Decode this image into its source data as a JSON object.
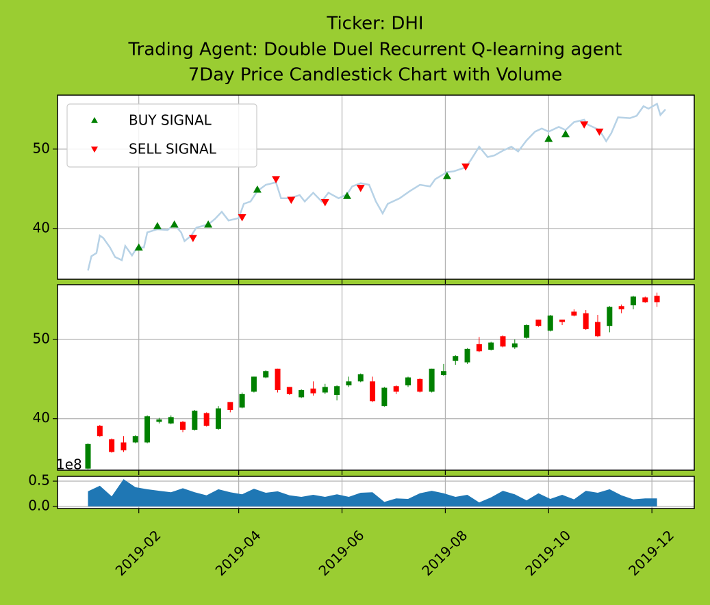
{
  "title": [
    "Ticker: DHI",
    "Trading Agent: Double Duel Recurrent Q-learning agent",
    "7Day Price Candlestick Chart with Volume"
  ],
  "chart_data": [
    {
      "type": "line",
      "x": [
        "2019-01-02",
        "2019-01-04",
        "2019-01-07",
        "2019-01-09",
        "2019-01-11",
        "2019-01-15",
        "2019-01-18",
        "2019-01-22",
        "2019-01-24",
        "2019-01-28",
        "2019-01-31",
        "2019-02-04",
        "2019-02-06",
        "2019-02-12",
        "2019-02-18",
        "2019-02-22",
        "2019-02-26",
        "2019-02-28",
        "2019-03-04",
        "2019-03-07",
        "2019-03-14",
        "2019-03-18",
        "2019-03-22",
        "2019-03-26",
        "2019-04-01",
        "2019-04-04",
        "2019-04-08",
        "2019-04-12",
        "2019-04-17",
        "2019-04-23",
        "2019-04-26",
        "2019-05-01",
        "2019-05-07",
        "2019-05-10",
        "2019-05-15",
        "2019-05-20",
        "2019-05-24",
        "2019-05-30",
        "2019-06-04",
        "2019-06-07",
        "2019-06-12",
        "2019-06-17",
        "2019-06-21",
        "2019-06-25",
        "2019-06-28",
        "2019-07-05",
        "2019-07-11",
        "2019-07-17",
        "2019-07-23",
        "2019-07-26",
        "2019-08-02",
        "2019-08-06",
        "2019-08-13",
        "2019-08-16",
        "2019-08-21",
        "2019-08-26",
        "2019-08-30",
        "2019-09-04",
        "2019-09-09",
        "2019-09-13",
        "2019-09-18",
        "2019-09-23",
        "2019-09-27",
        "2019-10-01",
        "2019-10-07",
        "2019-10-11",
        "2019-10-16",
        "2019-10-22",
        "2019-10-24",
        "2019-10-31",
        "2019-11-04",
        "2019-11-07",
        "2019-11-11",
        "2019-11-18",
        "2019-11-22",
        "2019-11-26",
        "2019-11-29",
        "2019-12-04",
        "2019-12-06",
        "2019-12-09"
      ],
      "values": [
        34.7,
        36.5,
        36.9,
        39.1,
        38.8,
        37.6,
        36.4,
        36.0,
        37.8,
        36.6,
        37.6,
        37.6,
        39.5,
        39.9,
        39.8,
        40.5,
        39.5,
        38.4,
        39.1,
        40.1,
        40.5,
        41.2,
        42.1,
        41.0,
        41.3,
        43.1,
        43.4,
        44.7,
        45.5,
        45.8,
        43.8,
        43.8,
        44.2,
        43.4,
        44.5,
        43.4,
        44.5,
        43.8,
        44.3,
        45.3,
        45.7,
        45.5,
        43.4,
        41.9,
        43.1,
        43.8,
        44.7,
        45.5,
        45.3,
        46.2,
        47.1,
        47.2,
        47.7,
        48.6,
        50.3,
        49.0,
        49.2,
        49.8,
        50.3,
        49.7,
        51.1,
        52.2,
        52.6,
        52.2,
        52.8,
        52.4,
        53.4,
        53.7,
        53.1,
        52.4,
        51.0,
        52.0,
        54.0,
        53.9,
        54.2,
        55.4,
        55.1,
        55.7,
        54.3,
        55.0
      ],
      "color": "#b7d2e6",
      "signals": [
        {
          "name": "BUY SIGNAL",
          "color": "#008000",
          "marker": "^",
          "x": [
            "2019-02-01",
            "2019-02-12",
            "2019-02-22",
            "2019-03-14",
            "2019-04-12",
            "2019-06-04",
            "2019-08-02",
            "2019-10-01",
            "2019-10-11"
          ],
          "values": [
            37.6,
            40.3,
            40.5,
            40.5,
            44.9,
            44.1,
            46.6,
            51.3,
            51.9
          ]
        },
        {
          "name": "SELL SIGNAL",
          "color": "#ff0000",
          "marker": "v",
          "x": [
            "2019-03-05",
            "2019-04-03",
            "2019-04-23",
            "2019-05-02",
            "2019-05-22",
            "2019-06-12",
            "2019-08-13",
            "2019-10-22",
            "2019-10-31"
          ],
          "values": [
            38.8,
            41.4,
            46.2,
            43.6,
            43.3,
            45.1,
            47.8,
            53.1,
            52.2
          ]
        }
      ],
      "xlim": [
        "2018-12-15",
        "2019-12-26"
      ],
      "xticks": [
        "2019-02",
        "2019-04",
        "2019-06",
        "2019-08",
        "2019-10",
        "2019-12"
      ],
      "ylim": [
        33.6,
        56.8
      ],
      "yticks": [
        40,
        50
      ],
      "grid": true,
      "legend": "upper left"
    },
    {
      "type": "candlestick",
      "x": [
        "2019-01-02",
        "2019-01-09",
        "2019-01-16",
        "2019-01-23",
        "2019-01-30",
        "2019-02-06",
        "2019-02-13",
        "2019-02-20",
        "2019-02-27",
        "2019-03-06",
        "2019-03-13",
        "2019-03-20",
        "2019-03-27",
        "2019-04-03",
        "2019-04-10",
        "2019-04-17",
        "2019-04-24",
        "2019-05-01",
        "2019-05-08",
        "2019-05-15",
        "2019-05-22",
        "2019-05-29",
        "2019-06-05",
        "2019-06-12",
        "2019-06-19",
        "2019-06-26",
        "2019-07-03",
        "2019-07-10",
        "2019-07-17",
        "2019-07-24",
        "2019-07-31",
        "2019-08-07",
        "2019-08-14",
        "2019-08-21",
        "2019-08-28",
        "2019-09-04",
        "2019-09-11",
        "2019-09-18",
        "2019-09-25",
        "2019-10-02",
        "2019-10-09",
        "2019-10-16",
        "2019-10-23",
        "2019-10-30",
        "2019-11-06",
        "2019-11-13",
        "2019-11-20",
        "2019-11-27",
        "2019-12-04"
      ],
      "open": [
        33.7,
        39.1,
        37.4,
        37.0,
        37.0,
        37.0,
        39.6,
        39.4,
        39.6,
        38.6,
        40.7,
        38.7,
        42.1,
        41.4,
        43.4,
        45.2,
        46.3,
        44.0,
        42.7,
        43.8,
        43.3,
        43.0,
        44.2,
        44.7,
        44.7,
        41.6,
        44.1,
        44.2,
        45.0,
        43.4,
        45.5,
        47.3,
        47.1,
        49.4,
        48.7,
        50.4,
        49.0,
        50.2,
        52.5,
        51.1,
        52.5,
        53.5,
        53.3,
        52.2,
        51.7,
        54.2,
        54.3,
        55.3,
        55.5
      ],
      "high": [
        36.9,
        39.2,
        37.5,
        37.8,
        37.9,
        40.4,
        40.1,
        40.4,
        39.7,
        41.1,
        40.8,
        41.6,
        42.1,
        43.3,
        45.3,
        46.1,
        46.3,
        44.0,
        43.7,
        44.7,
        44.4,
        44.2,
        45.3,
        45.7,
        45.3,
        44.0,
        44.2,
        45.3,
        45.1,
        46.3,
        46.9,
        48.0,
        48.9,
        50.3,
        49.7,
        50.5,
        50.0,
        51.9,
        52.5,
        53.1,
        52.5,
        53.8,
        53.7,
        53.1,
        54.2,
        54.4,
        55.5,
        55.4,
        55.9
      ],
      "low": [
        33.6,
        37.7,
        35.7,
        35.8,
        36.9,
        36.9,
        39.4,
        39.3,
        38.3,
        38.5,
        39.0,
        38.6,
        40.8,
        41.3,
        43.3,
        45.1,
        43.3,
        43.0,
        42.6,
        42.9,
        43.1,
        42.3,
        44.0,
        44.6,
        42.1,
        41.5,
        43.1,
        44.0,
        43.3,
        43.3,
        45.4,
        46.8,
        46.9,
        48.4,
        48.6,
        49.0,
        48.8,
        50.1,
        51.6,
        51.0,
        51.8,
        52.9,
        51.2,
        50.3,
        50.9,
        53.3,
        53.8,
        54.6,
        54.1
      ],
      "close": [
        36.8,
        37.8,
        35.8,
        36.0,
        37.8,
        40.3,
        39.9,
        40.2,
        38.6,
        41.0,
        39.1,
        41.3,
        41.1,
        43.1,
        45.3,
        46.0,
        43.6,
        43.1,
        43.6,
        43.2,
        44.0,
        44.1,
        44.7,
        45.6,
        42.2,
        43.9,
        43.4,
        45.2,
        43.4,
        46.3,
        46.0,
        47.9,
        48.8,
        48.5,
        49.6,
        49.1,
        49.5,
        51.8,
        51.7,
        53.0,
        52.2,
        53.0,
        51.3,
        50.4,
        54.1,
        53.8,
        55.4,
        54.7,
        54.7
      ],
      "up_color": "#008000",
      "down_color": "#ff0000",
      "xlim": [
        "2018-12-15",
        "2019-12-26"
      ],
      "xticks": [
        "2019-02",
        "2019-04",
        "2019-06",
        "2019-08",
        "2019-10",
        "2019-12"
      ],
      "ylim": [
        33.5,
        56.9
      ],
      "yticks": [
        40,
        50
      ],
      "grid": true
    },
    {
      "type": "area",
      "x": [
        "2019-01-02",
        "2019-01-09",
        "2019-01-16",
        "2019-01-23",
        "2019-01-30",
        "2019-02-06",
        "2019-02-13",
        "2019-02-20",
        "2019-02-27",
        "2019-03-06",
        "2019-03-13",
        "2019-03-20",
        "2019-03-27",
        "2019-04-03",
        "2019-04-10",
        "2019-04-17",
        "2019-04-24",
        "2019-05-01",
        "2019-05-08",
        "2019-05-15",
        "2019-05-22",
        "2019-05-29",
        "2019-06-05",
        "2019-06-12",
        "2019-06-19",
        "2019-06-26",
        "2019-07-03",
        "2019-07-10",
        "2019-07-17",
        "2019-07-24",
        "2019-07-31",
        "2019-08-07",
        "2019-08-14",
        "2019-08-21",
        "2019-08-28",
        "2019-09-04",
        "2019-09-11",
        "2019-09-18",
        "2019-09-25",
        "2019-10-02",
        "2019-10-09",
        "2019-10-16",
        "2019-10-23",
        "2019-10-30",
        "2019-11-06",
        "2019-11-13",
        "2019-11-20",
        "2019-11-27",
        "2019-12-04"
      ],
      "values": [
        0.3,
        0.41,
        0.2,
        0.54,
        0.38,
        0.34,
        0.31,
        0.28,
        0.36,
        0.28,
        0.22,
        0.34,
        0.28,
        0.24,
        0.35,
        0.27,
        0.3,
        0.22,
        0.19,
        0.23,
        0.19,
        0.24,
        0.19,
        0.27,
        0.28,
        0.09,
        0.16,
        0.15,
        0.26,
        0.31,
        0.26,
        0.19,
        0.23,
        0.08,
        0.18,
        0.31,
        0.24,
        0.12,
        0.26,
        0.15,
        0.23,
        0.14,
        0.31,
        0.27,
        0.34,
        0.22,
        0.14,
        0.16,
        0.16
      ],
      "color": "#1f77b4",
      "offset_label": "1e8",
      "xlim": [
        "2018-12-15",
        "2019-12-26"
      ],
      "xticks": [
        "2019-02",
        "2019-04",
        "2019-06",
        "2019-08",
        "2019-10",
        "2019-12"
      ],
      "ylim": [
        -0.04,
        0.595
      ],
      "yticks": [
        {
          "value": 0,
          "label": "0.0"
        },
        0.5
      ],
      "grid": true
    }
  ]
}
